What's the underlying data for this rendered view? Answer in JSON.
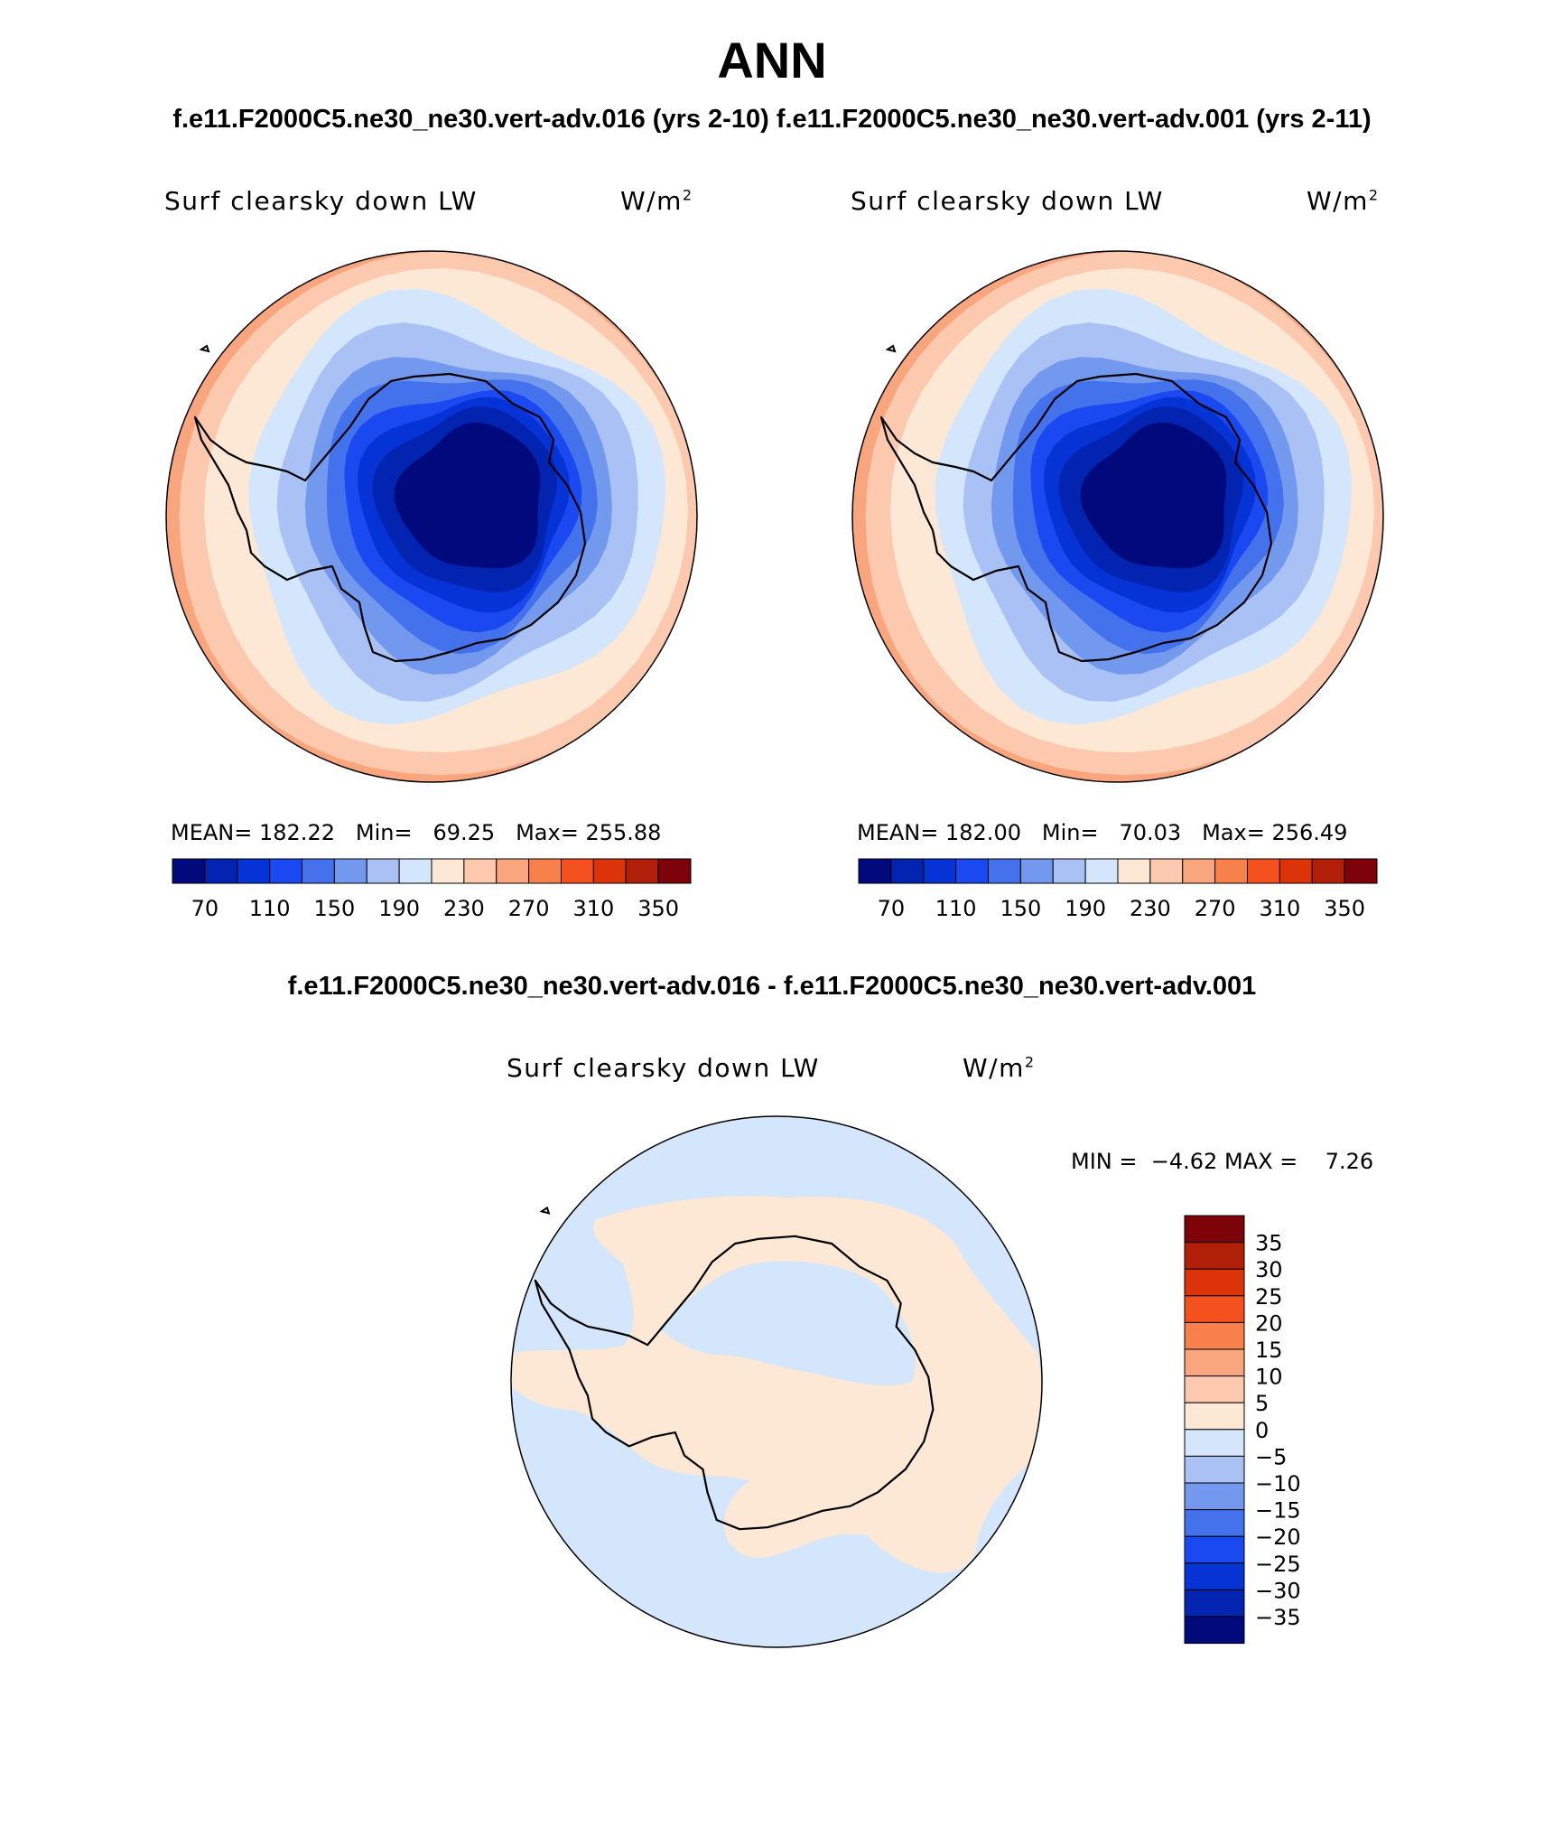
{
  "header": {
    "title": "ANN",
    "case_title": "f.e11.F2000C5.ne30_ne30.vert-adv.016 (yrs 2-10) f.e11.F2000C5.ne30_ne30.vert-adv.001 (yrs 2-11)",
    "diff_title": "f.e11.F2000C5.ne30_ne30.vert-adv.016 - f.e11.F2000C5.ne30_ne30.vert-adv.001"
  },
  "panels": [
    {
      "variable": "Surf clearsky down LW",
      "units_base": "W/m",
      "units_exp": "2",
      "mean_label": "MEAN=",
      "mean": "182.22",
      "min_label": "Min=",
      "min": "69.25",
      "max_label": "Max=",
      "max": "255.88"
    },
    {
      "variable": "Surf clearsky down LW",
      "units_base": "W/m",
      "units_exp": "2",
      "mean_label": "MEAN=",
      "mean": "182.00",
      "min_label": "Min=",
      "min": "70.03",
      "max_label": "Max=",
      "max": "256.49"
    }
  ],
  "diff_panel": {
    "variable": "Surf clearsky down LW",
    "units_base": "W/m",
    "units_exp": "2",
    "min_label": "MIN =",
    "min": "−4.62",
    "max_label": "MAX =",
    "max": "7.26"
  },
  "colorbar_main": {
    "tick_labels": [
      "70",
      "110",
      "150",
      "190",
      "230",
      "270",
      "310",
      "350"
    ],
    "colors": [
      "#000a7c",
      "#0324b1",
      "#0533d5",
      "#1a49f2",
      "#4372ec",
      "#7399ef",
      "#a9c1f5",
      "#d3e6fb",
      "#fde8d6",
      "#fcc9ae",
      "#f9a67e",
      "#f7804b",
      "#f4511f",
      "#dc3308",
      "#b11f08",
      "#7e0308"
    ]
  },
  "colorbar_diff": {
    "tick_labels": [
      "35",
      "30",
      "25",
      "20",
      "15",
      "10",
      "5",
      "0",
      "−5",
      "−10",
      "−15",
      "−20",
      "−25",
      "−30",
      "−35"
    ],
    "colors": [
      "#7e0308",
      "#b11f08",
      "#dc3308",
      "#f4511f",
      "#f7804b",
      "#f9a67e",
      "#fcc9ae",
      "#fde8d6",
      "#d3e6fb",
      "#a9c1f5",
      "#7399ef",
      "#4372ec",
      "#1a49f2",
      "#0533d5",
      "#0324b1",
      "#000a7c"
    ]
  },
  "map_colors": {
    "ring_outer": "#f9a67e",
    "ring_2": "#fcc9ae",
    "ring_3": "#fde8d6",
    "ring_4": "#d3e6fb",
    "ring_5": "#a9c1f5",
    "ring_6": "#7399ef",
    "ring_7": "#4372ec",
    "ring_8": "#1a49f2",
    "ring_9": "#0533d5",
    "ring_10": "#0324b1",
    "core": "#000a7c",
    "diff_background": "#d3e6fb",
    "diff_positive": "#fde8d6",
    "coastline": "#000000"
  }
}
